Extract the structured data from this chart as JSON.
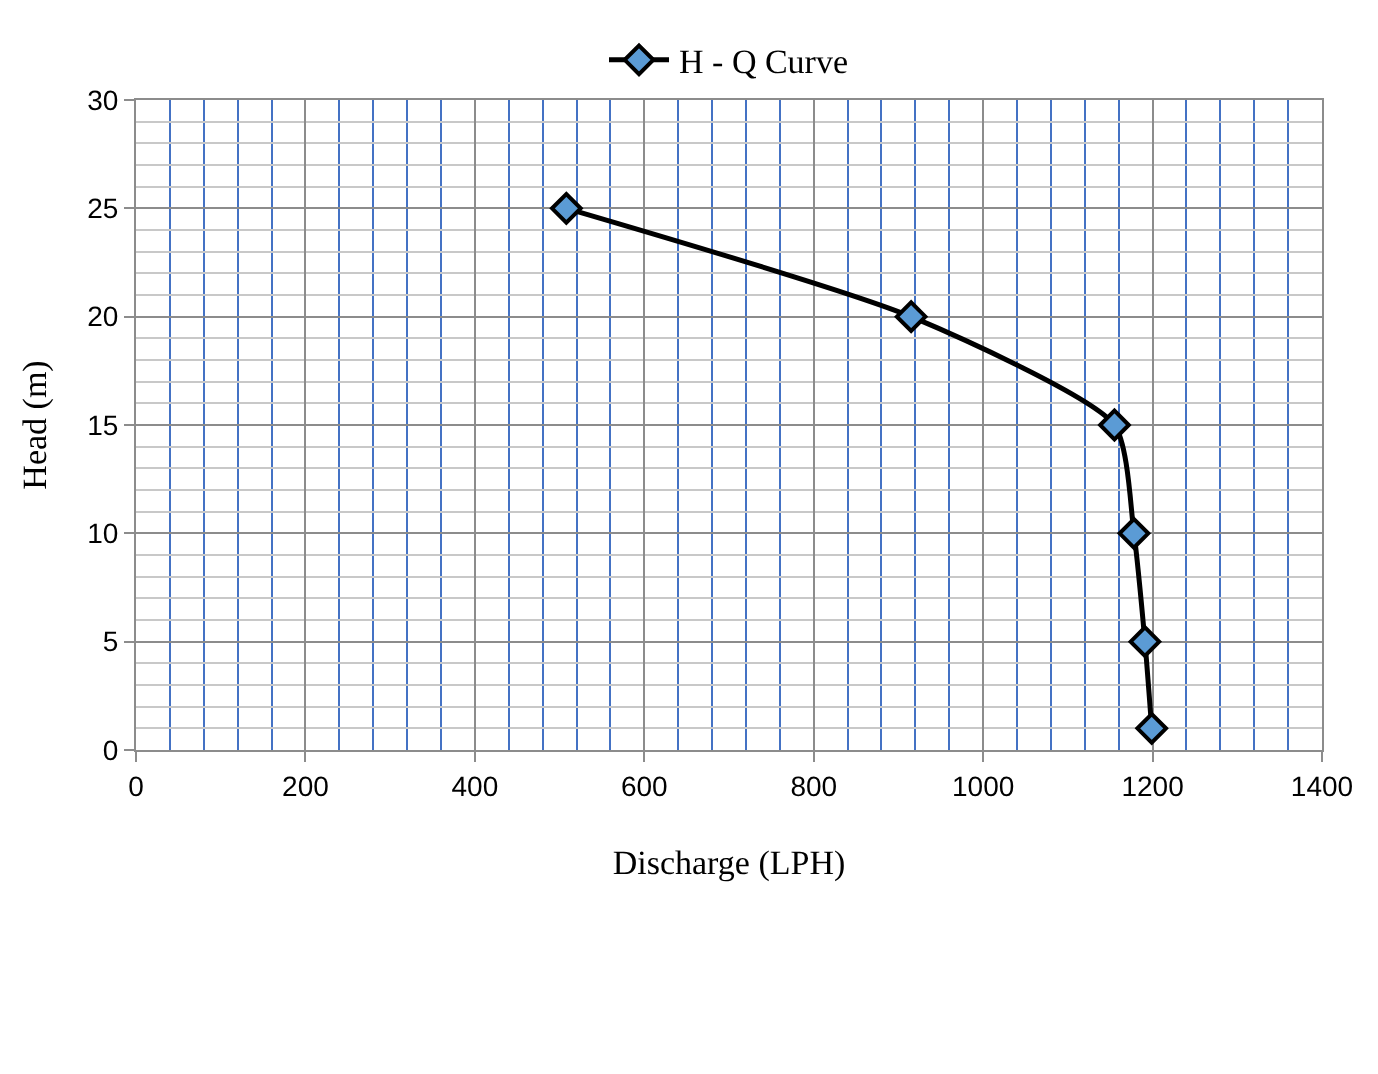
{
  "chart_data": {
    "type": "line",
    "xlabel": "Discharge (LPH)",
    "ylabel": "Head (m)",
    "series": [
      {
        "name": "H - Q Curve",
        "color": "#5b9bd5",
        "x": [
          508,
          915,
          1155,
          1178,
          1191,
          1199
        ],
        "values": [
          25,
          20,
          15,
          10,
          5,
          1
        ]
      }
    ],
    "xlim": [
      0,
      1400
    ],
    "xticks": [
      0,
      {
        "value": 40,
        "label": null
      },
      {
        "value": 80,
        "label": null
      },
      {
        "value": 120,
        "label": null
      },
      {
        "value": 160,
        "label": null
      },
      200,
      {
        "value": 240,
        "label": null
      },
      {
        "value": 280,
        "label": null
      },
      {
        "value": 320,
        "label": null
      },
      {
        "value": 360,
        "label": null
      },
      400,
      {
        "value": 440,
        "label": null
      },
      {
        "value": 480,
        "label": null
      },
      {
        "value": 520,
        "label": null
      },
      {
        "value": 560,
        "label": null
      },
      600,
      {
        "value": 640,
        "label": null
      },
      {
        "value": 680,
        "label": null
      },
      {
        "value": 720,
        "label": null
      },
      {
        "value": 760,
        "label": null
      },
      800,
      {
        "value": 840,
        "label": null
      },
      {
        "value": 880,
        "label": null
      },
      {
        "value": 920,
        "label": null
      },
      {
        "value": 960,
        "label": null
      },
      1000,
      {
        "value": 1040,
        "label": null
      },
      {
        "value": 1080,
        "label": null
      },
      {
        "value": 1120,
        "label": null
      },
      {
        "value": 1160,
        "label": null
      },
      1200,
      {
        "value": 1240,
        "label": null
      },
      {
        "value": 1280,
        "label": null
      },
      {
        "value": 1320,
        "label": null
      },
      {
        "value": 1360,
        "label": null
      },
      1400
    ],
    "ylim": [
      0,
      30
    ],
    "yticks": [
      0,
      {
        "value": 1,
        "label": null
      },
      {
        "value": 2,
        "label": null
      },
      {
        "value": 3,
        "label": null
      },
      {
        "value": 4,
        "label": null
      },
      5,
      {
        "value": 6,
        "label": null
      },
      {
        "value": 7,
        "label": null
      },
      {
        "value": 8,
        "label": null
      },
      {
        "value": 9,
        "label": null
      },
      10,
      {
        "value": 11,
        "label": null
      },
      {
        "value": 12,
        "label": null
      },
      {
        "value": 13,
        "label": null
      },
      {
        "value": 14,
        "label": null
      },
      15,
      {
        "value": 16,
        "label": null
      },
      {
        "value": 17,
        "label": null
      },
      {
        "value": 18,
        "label": null
      },
      {
        "value": 19,
        "label": null
      },
      20,
      {
        "value": 21,
        "label": null
      },
      {
        "value": 22,
        "label": null
      },
      {
        "value": 23,
        "label": null
      },
      {
        "value": 24,
        "label": null
      },
      25,
      {
        "value": 26,
        "label": null
      },
      {
        "value": 27,
        "label": null
      },
      {
        "value": 28,
        "label": null
      },
      {
        "value": 29,
        "label": null
      },
      30
    ],
    "grid": true,
    "legend": "top",
    "marker": "diamond",
    "line_style": "solid"
  }
}
